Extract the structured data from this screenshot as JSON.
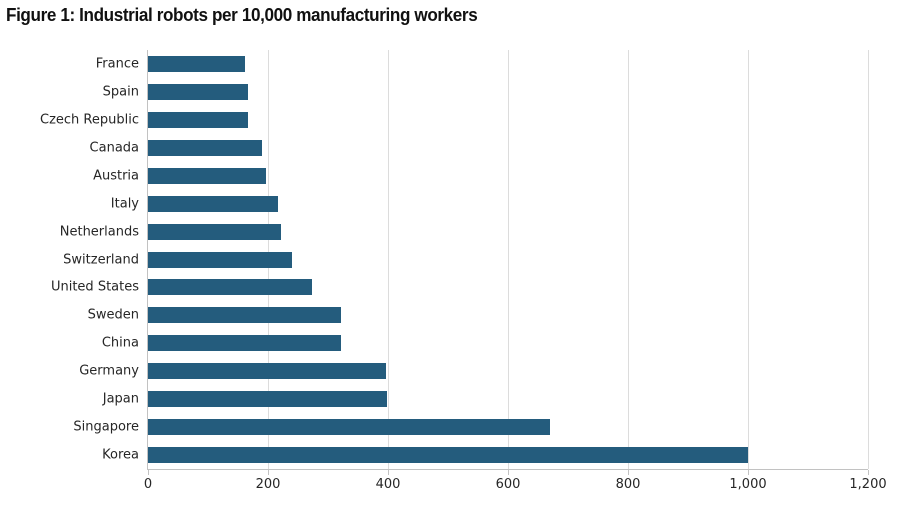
{
  "header": {
    "title": "Figure 1: Industrial robots per 10,000 manufacturing workers"
  },
  "chart_data": {
    "type": "bar",
    "orientation": "horizontal",
    "title": "Figure 1: Industrial robots per 10,000 manufacturing workers",
    "categories": [
      "France",
      "Spain",
      "Czech Republic",
      "Canada",
      "Austria",
      "Italy",
      "Netherlands",
      "Switzerland",
      "United States",
      "Sweden",
      "China",
      "Germany",
      "Japan",
      "Singapore",
      "Korea"
    ],
    "values": [
      162,
      166,
      167,
      190,
      196,
      217,
      222,
      240,
      274,
      321,
      322,
      397,
      399,
      670,
      1000
    ],
    "xlabel": "",
    "ylabel": "",
    "xlim": [
      0,
      1200
    ],
    "xticks": [
      0,
      200,
      400,
      600,
      800,
      1000,
      1200
    ],
    "xtick_labels": [
      "0",
      "200",
      "400",
      "600",
      "800",
      "1,000",
      "1,200"
    ],
    "grid": "vertical",
    "legend": "none",
    "colors": {
      "bar": "#245C7D",
      "gridline": "#DCDCDC",
      "axis": "#C2C2C2",
      "label": "#262626",
      "title": "#111111"
    }
  }
}
